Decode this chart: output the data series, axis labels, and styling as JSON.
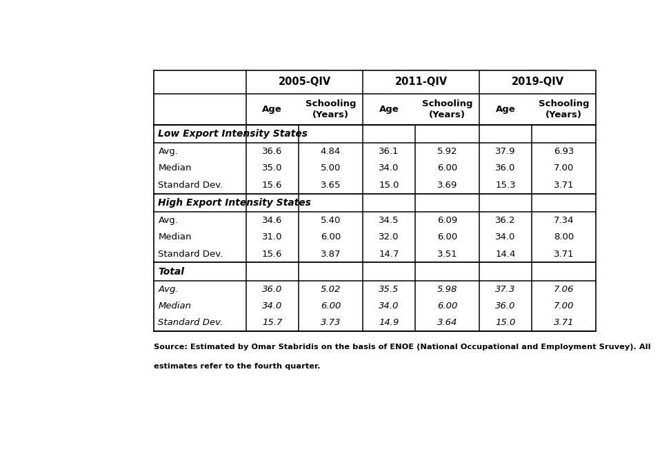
{
  "sections": [
    {
      "header": "Low Export Intensity States",
      "header_bold": true,
      "header_italic": true,
      "rows_italic": false,
      "rows": [
        {
          "label": "Avg.",
          "values": [
            "36.6",
            "4.84",
            "36.1",
            "5.92",
            "37.9",
            "6.93"
          ]
        },
        {
          "label": "Median",
          "values": [
            "35.0",
            "5.00",
            "34.0",
            "6.00",
            "36.0",
            "7.00"
          ]
        },
        {
          "label": "Standard Dev.",
          "values": [
            "15.6",
            "3.65",
            "15.0",
            "3.69",
            "15.3",
            "3.71"
          ]
        }
      ]
    },
    {
      "header": "High Export Intensity States",
      "header_bold": true,
      "header_italic": true,
      "rows_italic": false,
      "rows": [
        {
          "label": "Avg.",
          "values": [
            "34.6",
            "5.40",
            "34.5",
            "6.09",
            "36.2",
            "7.34"
          ]
        },
        {
          "label": "Median",
          "values": [
            "31.0",
            "6.00",
            "32.0",
            "6.00",
            "34.0",
            "8.00"
          ]
        },
        {
          "label": "Standard Dev.",
          "values": [
            "15.6",
            "3.87",
            "14.7",
            "3.51",
            "14.4",
            "3.71"
          ]
        }
      ]
    },
    {
      "header": "Total",
      "header_bold": true,
      "header_italic": true,
      "rows_italic": true,
      "rows": [
        {
          "label": "Avg.",
          "values": [
            "36.0",
            "5.02",
            "35.5",
            "5.98",
            "37.3",
            "7.06"
          ]
        },
        {
          "label": "Median",
          "values": [
            "34.0",
            "6.00",
            "34.0",
            "6.00",
            "36.0",
            "7.00"
          ]
        },
        {
          "label": "Standard Dev.",
          "values": [
            "15.7",
            "3.73",
            "14.9",
            "3.64",
            "15.0",
            "3.71"
          ]
        }
      ]
    }
  ],
  "year_labels": [
    "2005-QIV",
    "2011-QIV",
    "2019-QIV"
  ],
  "sub_labels": [
    "Age",
    "Schooling\n(Years)",
    "Age",
    "Schooling\n(Years)",
    "Age",
    "Schooling\n(Years)"
  ],
  "footnote_line1": "Source: Estimated by Omar Stabridis on the basis of ENOE (National Occupational and Employment Sruvey). All",
  "footnote_line2": "estimates refer to the fourth quarter.",
  "bg_color": "#ffffff",
  "line_color": "#000000"
}
